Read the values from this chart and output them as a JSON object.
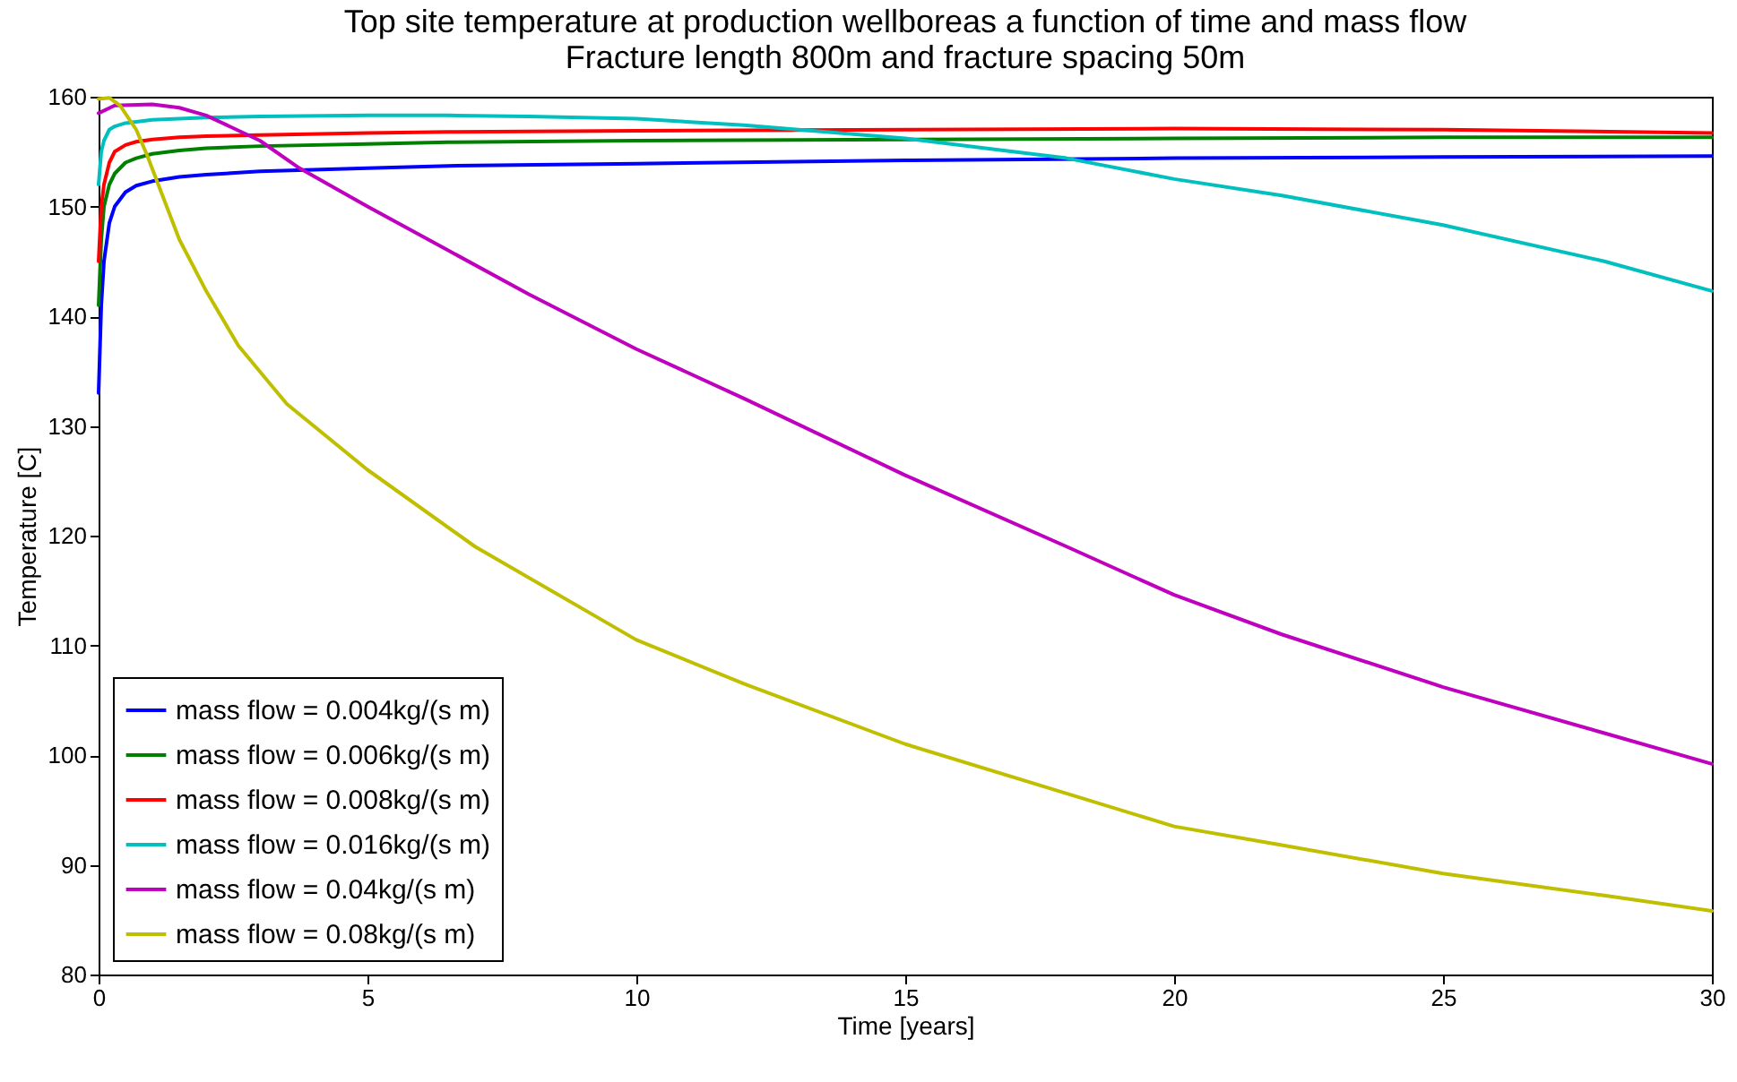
{
  "chart_data": {
    "type": "line",
    "title": "Top site temperature at production wellboreas a function of time and mass flow",
    "subtitle": "Fracture length 800m and fracture spacing 50m",
    "xlabel": "Time [years]",
    "ylabel": "Temperature [C]",
    "xlim": [
      0,
      30
    ],
    "xticks": [
      0,
      5,
      10,
      15,
      20,
      25,
      30
    ],
    "ylim": [
      80,
      160
    ],
    "yticks": [
      80,
      90,
      100,
      110,
      120,
      130,
      140,
      150,
      160
    ],
    "legend": "bottom left",
    "grid": false,
    "series": [
      {
        "name": "mass flow = 0.004kg/(s m)",
        "color": "#0000ff",
        "x": [
          0,
          0.05,
          0.1,
          0.2,
          0.3,
          0.5,
          0.7,
          1,
          1.5,
          2,
          3,
          5,
          6.5,
          10,
          15,
          20,
          25,
          30
        ],
        "values": [
          133,
          141,
          145,
          148.5,
          150,
          151.3,
          151.9,
          152.3,
          152.7,
          152.9,
          153.2,
          153.5,
          153.7,
          153.9,
          154.2,
          154.4,
          154.5,
          154.6
        ]
      },
      {
        "name": "mass flow = 0.006kg/(s m)",
        "color": "#008000",
        "x": [
          0,
          0.05,
          0.1,
          0.2,
          0.3,
          0.5,
          0.7,
          1,
          1.5,
          2,
          3,
          5,
          6.5,
          10,
          15,
          20,
          25,
          30
        ],
        "values": [
          141,
          147,
          150,
          152,
          153,
          154,
          154.4,
          154.8,
          155.1,
          155.3,
          155.5,
          155.7,
          155.85,
          156,
          156.1,
          156.2,
          156.3,
          156.3
        ]
      },
      {
        "name": "mass flow = 0.008kg/(s m)",
        "color": "#ff0000",
        "x": [
          0,
          0.05,
          0.1,
          0.2,
          0.3,
          0.5,
          0.7,
          1,
          1.5,
          2,
          3,
          5,
          6.5,
          10,
          15,
          20,
          25,
          30
        ],
        "values": [
          145,
          150,
          152,
          154,
          155,
          155.6,
          155.9,
          156.1,
          156.3,
          156.4,
          156.5,
          156.7,
          156.8,
          156.9,
          157,
          157.1,
          157,
          156.7
        ]
      },
      {
        "name": "mass flow = 0.016kg/(s m)",
        "color": "#00bfbf",
        "x": [
          0,
          0.05,
          0.1,
          0.2,
          0.3,
          0.5,
          1,
          2,
          3,
          5,
          6.5,
          8,
          10,
          12,
          15,
          17,
          18,
          20,
          22,
          25,
          28,
          30
        ],
        "values": [
          152,
          155,
          156,
          157,
          157.3,
          157.6,
          157.9,
          158.1,
          158.2,
          158.3,
          158.3,
          158.2,
          158,
          157.4,
          156.2,
          155,
          154.4,
          152.5,
          151,
          148.3,
          145,
          142.3
        ]
      },
      {
        "name": "mass flow = 0.04kg/(s m)",
        "color": "#bf00bf",
        "x": [
          0,
          0.3,
          1,
          1.5,
          2,
          3,
          3.7,
          5,
          6.5,
          8,
          10,
          12,
          15,
          18,
          20,
          22,
          25,
          28,
          30
        ],
        "values": [
          158.5,
          159.2,
          159.3,
          159,
          158.3,
          156,
          153.6,
          150,
          146,
          142,
          137,
          132.5,
          125.5,
          119,
          114.6,
          111,
          106.2,
          102,
          99.2
        ]
      },
      {
        "name": "mass flow = 0.08kg/(s m)",
        "color": "#bfbf00",
        "x": [
          0,
          0.2,
          0.4,
          0.7,
          0.9,
          1.5,
          2,
          2.6,
          3.5,
          5,
          7,
          10,
          12,
          15,
          18,
          20,
          22,
          25,
          28,
          30
        ],
        "values": [
          159.8,
          159.9,
          159.2,
          157,
          154.7,
          147,
          142.3,
          137.3,
          132,
          126,
          119,
          110.5,
          106.5,
          101,
          96.5,
          93.5,
          91.8,
          89.2,
          87.2,
          85.8
        ]
      }
    ]
  }
}
